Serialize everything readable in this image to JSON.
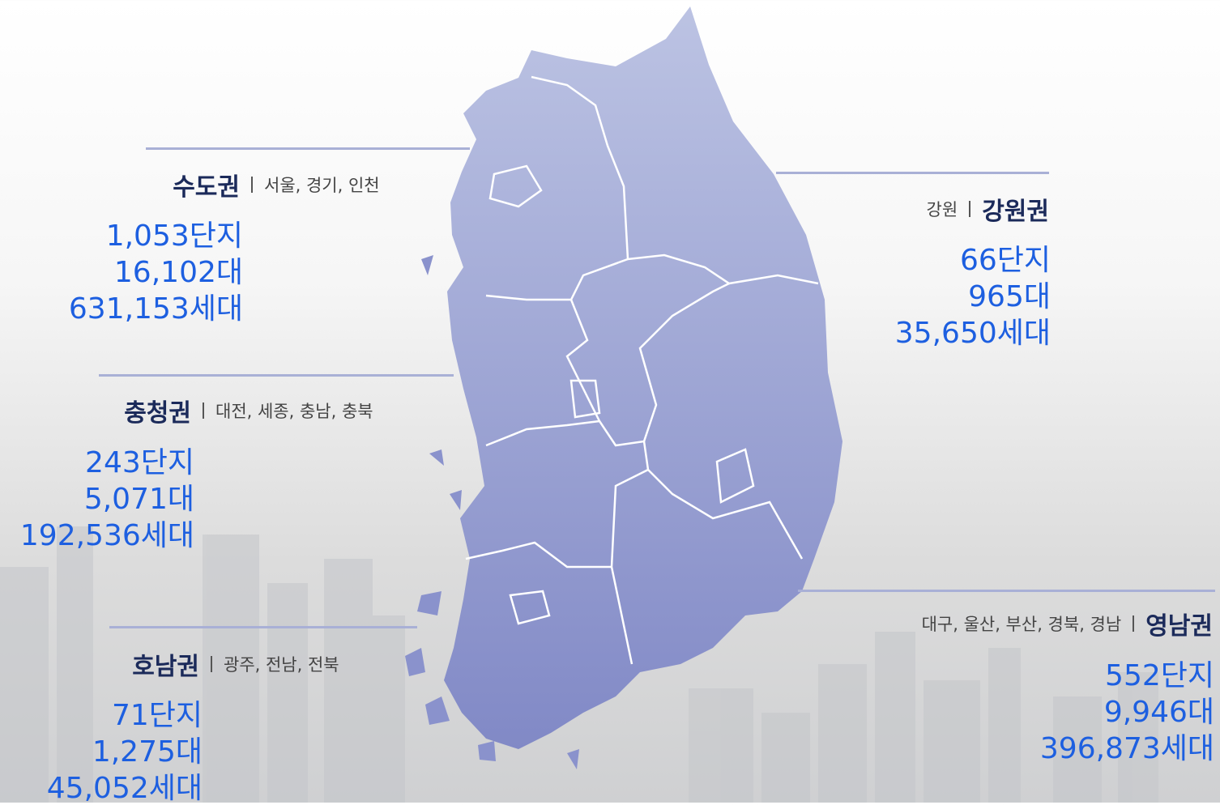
{
  "regions": [
    {
      "name": "수도권",
      "cities": "서울, 경기, 인천",
      "stats": [
        "1,053단지",
        "16,102대",
        "631,153세대"
      ]
    },
    {
      "name": "충청권",
      "cities": "대전, 세종, 충남, 충북",
      "stats": [
        "243단지",
        "5,071대",
        "192,536세대"
      ]
    },
    {
      "name": "호남권",
      "cities": "광주, 전남, 전북",
      "stats": [
        "71단지",
        "1,275대",
        "45,052세대"
      ]
    },
    {
      "name": "강원권",
      "cities": "강원",
      "stats": [
        "66단지",
        "965대",
        "35,650세대"
      ]
    },
    {
      "name": "영남권",
      "cities": "대구, 울산, 부산, 경북, 경남",
      "stats": [
        "552단지",
        "9,946대",
        "396,873세대"
      ]
    }
  ]
}
